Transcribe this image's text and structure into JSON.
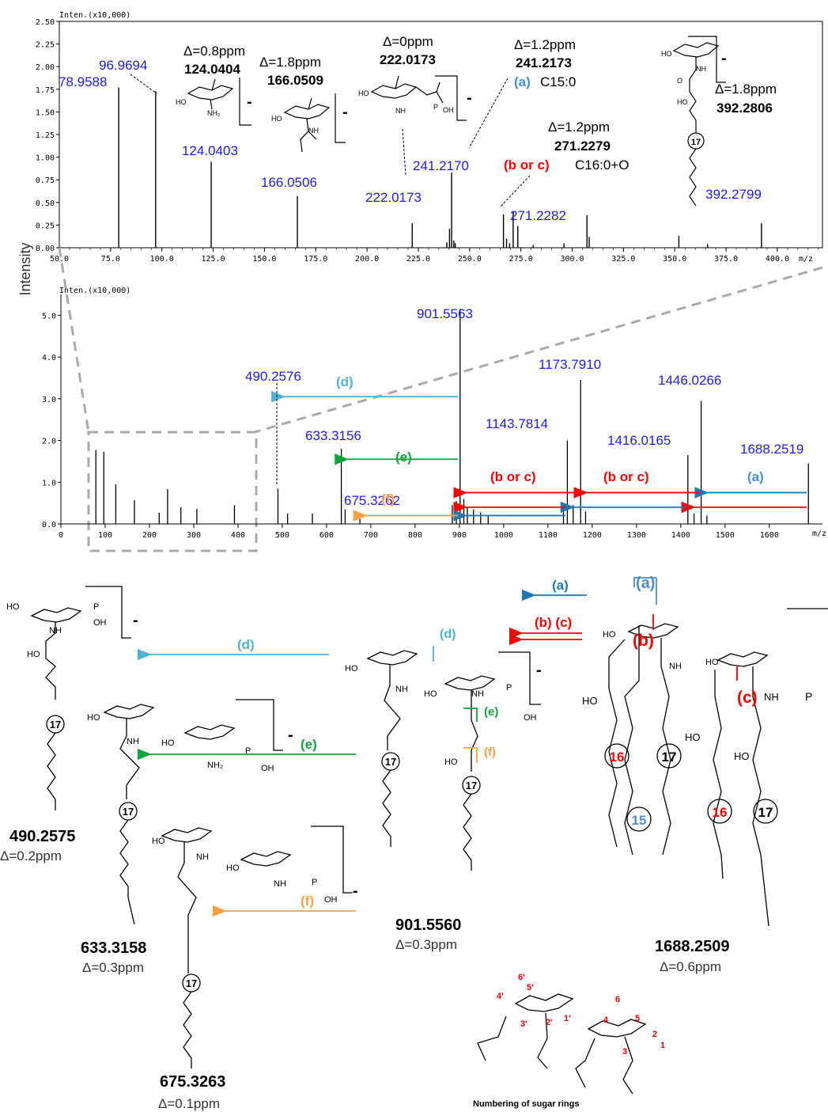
{
  "y_axis_label": "Intensity",
  "colors": {
    "peak_label": "#1c1cf0",
    "a": "#1f77b4",
    "a_label": "#4a8fd6",
    "bc": "#ff0000",
    "d": "#4fb3d6",
    "e": "#12a33a",
    "f": "#ff9f40",
    "zoom_box": "#aaaaaa"
  },
  "chart_data": [
    {
      "type": "bar",
      "panel": "top",
      "ylabel_top": "Inten.(x10,000)",
      "xlabel": "m/z",
      "xlim": [
        50,
        422
      ],
      "ylim": [
        0,
        2.5
      ],
      "xticks": [
        "50.0",
        "75.0",
        "100.0",
        "125.0",
        "150.0",
        "175.0",
        "200.0",
        "225.0",
        "250.0",
        "275.0",
        "300.0",
        "325.0",
        "350.0",
        "375.0",
        "400.0"
      ],
      "xtick_values": [
        50,
        75,
        100,
        125,
        150,
        175,
        200,
        225,
        250,
        275,
        300,
        325,
        350,
        375,
        400
      ],
      "yticks": [
        "0.00",
        "0.25",
        "0.50",
        "0.75",
        "1.00",
        "1.25",
        "1.50",
        "1.75",
        "2.00",
        "2.25",
        "2.50"
      ],
      "ytick_values": [
        0,
        0.25,
        0.5,
        0.75,
        1.0,
        1.25,
        1.5,
        1.75,
        2.0,
        2.25,
        2.5
      ],
      "peaks": [
        {
          "x": 78.96,
          "y": 1.77,
          "label": "78.9588"
        },
        {
          "x": 96.97,
          "y": 1.73,
          "label": "96.9694"
        },
        {
          "x": 124.04,
          "y": 0.95,
          "label": "124.0403"
        },
        {
          "x": 166.05,
          "y": 0.57,
          "label": "166.0506"
        },
        {
          "x": 222.02,
          "y": 0.27,
          "label": "222.0173"
        },
        {
          "x": 241.22,
          "y": 0.83,
          "label": "241.2170"
        },
        {
          "x": 271.23,
          "y": 0.4,
          "label": "271.2282"
        },
        {
          "x": 392.28,
          "y": 0.27,
          "label": "392.2799"
        },
        {
          "x": 238.9,
          "y": 0.06
        },
        {
          "x": 240.2,
          "y": 0.21
        },
        {
          "x": 242.3,
          "y": 0.08
        },
        {
          "x": 243.0,
          "y": 0.05
        },
        {
          "x": 266.5,
          "y": 0.37
        },
        {
          "x": 268.0,
          "y": 0.1
        },
        {
          "x": 269.5,
          "y": 0.05
        },
        {
          "x": 273.5,
          "y": 0.24
        },
        {
          "x": 281.0,
          "y": 0.03
        },
        {
          "x": 296.0,
          "y": 0.05
        },
        {
          "x": 307.2,
          "y": 0.36
        },
        {
          "x": 308.3,
          "y": 0.12
        },
        {
          "x": 352.0,
          "y": 0.13
        },
        {
          "x": 366.0,
          "y": 0.04
        }
      ],
      "annotations": {
        "d124": {
          "delta": "Δ=0.8ppm",
          "mass": "124.0404"
        },
        "d166": {
          "delta": "Δ=1.8ppm",
          "mass": "166.0509"
        },
        "d222": {
          "delta": "Δ=0ppm",
          "mass": "222.0173"
        },
        "d241": {
          "delta": "Δ=1.2ppm",
          "mass": "241.2173",
          "tag": "(a)",
          "desc": "C15:0"
        },
        "d271": {
          "delta": "Δ=1.2ppm",
          "mass": "271.2279",
          "tag": "(b or c)",
          "desc": "C16:0+O"
        },
        "d392": {
          "delta": "Δ=1.8ppm",
          "mass": "392.2806"
        }
      },
      "minus_sign": "-",
      "chain_17": "17"
    },
    {
      "type": "bar",
      "panel": "bottom",
      "ylabel_top": "Inten.(x10,000)",
      "xlabel": "m/z",
      "xlim": [
        0,
        1720
      ],
      "ylim": [
        0,
        5.5
      ],
      "xticks": [
        "0",
        "100",
        "200",
        "300",
        "400",
        "500",
        "600",
        "700",
        "800",
        "900",
        "1000",
        "1100",
        "1200",
        "1300",
        "1400",
        "1500",
        "1600"
      ],
      "xtick_values": [
        0,
        100,
        200,
        300,
        400,
        500,
        600,
        700,
        800,
        900,
        1000,
        1100,
        1200,
        1300,
        1400,
        1500,
        1600
      ],
      "yticks": [
        "0.0",
        "1.0",
        "2.0",
        "3.0",
        "4.0",
        "5.0"
      ],
      "ytick_values": [
        0,
        1,
        2,
        3,
        4,
        5
      ],
      "peaks": [
        {
          "x": 901.56,
          "y": 5.15,
          "label": "901.5563"
        },
        {
          "x": 490.26,
          "y": 0.85,
          "label": "490.2576"
        },
        {
          "x": 633.32,
          "y": 1.8,
          "label": "633.3156"
        },
        {
          "x": 675.33,
          "y": 0.12,
          "label": "675.3262"
        },
        {
          "x": 1143.78,
          "y": 2.0,
          "label": "1143.7814"
        },
        {
          "x": 1173.79,
          "y": 3.45,
          "label": "1173.7910"
        },
        {
          "x": 1416.02,
          "y": 1.65,
          "label": "1416.0165"
        },
        {
          "x": 1446.03,
          "y": 2.95,
          "label": "1446.0266"
        },
        {
          "x": 1688.25,
          "y": 1.45,
          "label": "1688.2519"
        },
        {
          "x": 79,
          "y": 1.77
        },
        {
          "x": 97,
          "y": 1.73
        },
        {
          "x": 124,
          "y": 0.95
        },
        {
          "x": 166,
          "y": 0.57
        },
        {
          "x": 222,
          "y": 0.27
        },
        {
          "x": 241,
          "y": 0.83
        },
        {
          "x": 271,
          "y": 0.4
        },
        {
          "x": 307,
          "y": 0.36
        },
        {
          "x": 392,
          "y": 0.45
        },
        {
          "x": 512,
          "y": 0.25
        },
        {
          "x": 568,
          "y": 0.25
        },
        {
          "x": 642,
          "y": 0.35
        },
        {
          "x": 884,
          "y": 0.45
        },
        {
          "x": 893,
          "y": 0.55
        },
        {
          "x": 910,
          "y": 0.6
        },
        {
          "x": 918,
          "y": 0.4
        },
        {
          "x": 932,
          "y": 0.35
        },
        {
          "x": 948,
          "y": 0.28
        },
        {
          "x": 965,
          "y": 0.2
        },
        {
          "x": 1135,
          "y": 0.35
        },
        {
          "x": 1157,
          "y": 0.45
        },
        {
          "x": 1185,
          "y": 0.3
        },
        {
          "x": 1430,
          "y": 0.25
        },
        {
          "x": 1459,
          "y": 0.2
        }
      ],
      "arrows": [
        {
          "from": 1688,
          "to": 1446,
          "level": 0.75,
          "tag": "(a)",
          "color": "a"
        },
        {
          "from": 1446,
          "to": 1173,
          "level": 0.75,
          "tag": "(b or c)",
          "color": "bc"
        },
        {
          "from": 1173,
          "to": 901,
          "level": 0.75,
          "tag": "(b or c)",
          "color": "bc"
        },
        {
          "from": 1688,
          "to": 1416,
          "level": 0.4,
          "color": "bc"
        },
        {
          "from": 1416,
          "to": 1143,
          "level": 0.4,
          "color": "a"
        },
        {
          "from": 1143,
          "to": 901,
          "level": 0.4,
          "color": "bc"
        },
        {
          "from": 1416,
          "to": 1416,
          "level": 0.2,
          "color": "bc"
        },
        {
          "from": 1143,
          "to": 901,
          "level": 0.2,
          "color": "a"
        },
        {
          "from": 901,
          "to": 633,
          "level": 1.55,
          "tag": "(e)",
          "color": "e"
        },
        {
          "from": 901,
          "to": 675,
          "level": 0.2,
          "tag": "(f)",
          "color": "f"
        },
        {
          "from": 901,
          "to": 490,
          "level": 3.05,
          "tag": "(d)",
          "color": "d"
        }
      ]
    }
  ],
  "scheme": {
    "frag_d": {
      "mass": "490.2575",
      "delta": "Δ=0.2ppm",
      "arrow": "(d)"
    },
    "frag_e": {
      "mass": "633.3158",
      "delta": "Δ=0.3ppm",
      "arrow": "(e)"
    },
    "frag_f": {
      "mass": "675.3263",
      "delta": "Δ=0.1ppm",
      "arrow": "(f)"
    },
    "frag_901": {
      "mass": "901.5560",
      "delta": "Δ=0.3ppm"
    },
    "parent": {
      "mass": "1688.2509",
      "delta": "Δ=0.6ppm"
    },
    "arrow_a": "(a)",
    "arrow_bc": "(b) (c)",
    "cleave_b": "(b)",
    "cleave_c": "(c)",
    "cleave_a": "(a)",
    "cleave_d": "(d)",
    "cleave_e": "(e)",
    "cleave_f": "(f)",
    "chain_16": "16",
    "chain_15": "15",
    "chain_17": "17",
    "minus": "-",
    "atoms": {
      "HO": "HO",
      "OH": "OH",
      "NH": "NH",
      "O": "O",
      "P": "P",
      "NH2": "NH₂"
    },
    "numbering": {
      "title": "Numbering of sugar rings",
      "labels": [
        "1'",
        "2'",
        "3'",
        "4'",
        "5'",
        "6'",
        "1",
        "2",
        "3",
        "4",
        "5",
        "6"
      ]
    }
  }
}
